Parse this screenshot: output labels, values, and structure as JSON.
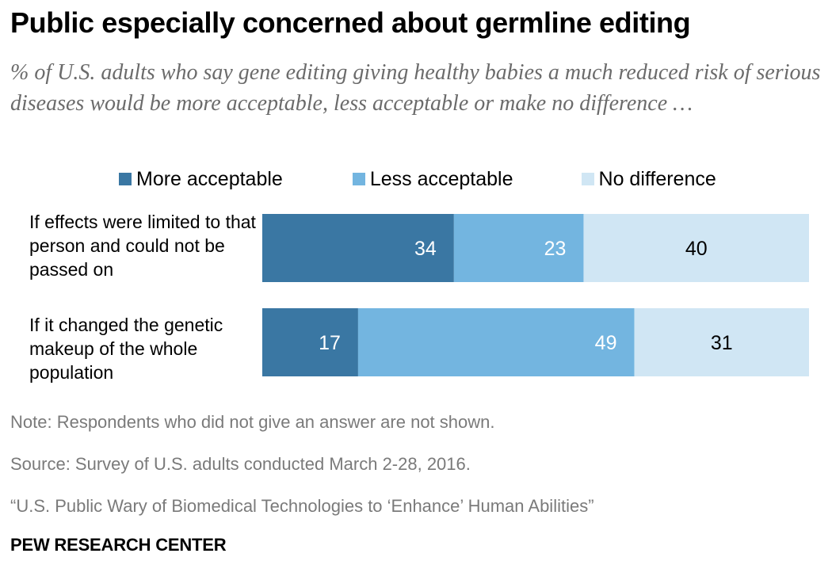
{
  "header": {
    "title": "Public especially concerned about germline editing",
    "subtitle": "% of U.S. adults who say gene editing giving healthy babies a much reduced risk of serious diseases would be more acceptable, less acceptable or make no difference …"
  },
  "colors": {
    "more_acceptable": "#3a77a3",
    "less_acceptable": "#73b5e0",
    "no_difference": "#d0e6f4",
    "value_on_dark": "#ffffff",
    "value_on_light": "#000000"
  },
  "chart_data": {
    "type": "bar",
    "orientation": "horizontal",
    "stacked": true,
    "categories": [
      "If effects were limited to that person and could not be passed on",
      "If it changed the genetic makeup of the whole population"
    ],
    "series": [
      {
        "name": "More acceptable",
        "values": [
          34,
          17
        ]
      },
      {
        "name": "Less acceptable",
        "values": [
          23,
          49
        ]
      },
      {
        "name": "No difference",
        "values": [
          40,
          31
        ]
      }
    ],
    "xlim": [
      0,
      97
    ],
    "grid": false,
    "legend": "top"
  },
  "footer": {
    "note": "Note: Respondents who did not give an answer are not shown.",
    "source": "Source: Survey of U.S. adults conducted March 2-28, 2016.",
    "report": "“U.S. Public Wary of Biomedical Technologies to ‘Enhance’ Human Abilities”",
    "brand": "PEW RESEARCH CENTER"
  }
}
